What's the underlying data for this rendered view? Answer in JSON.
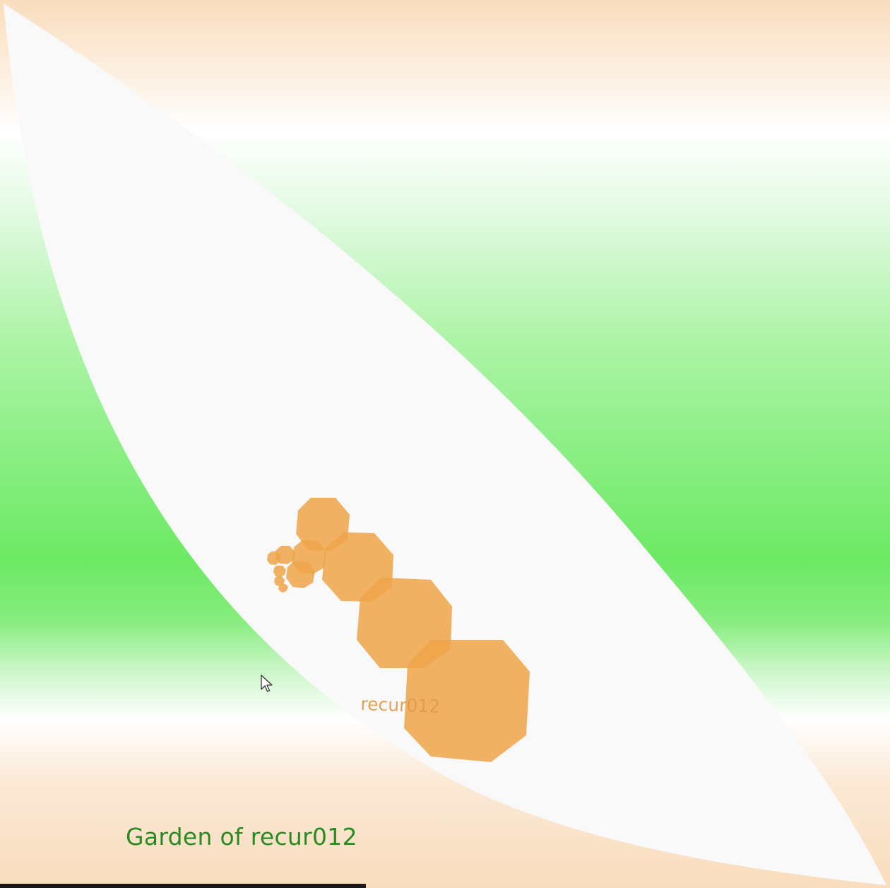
{
  "scene": {
    "blob_label": "recur012",
    "title": "Garden of recur012"
  },
  "colors": {
    "peach": "#f9ddbd",
    "green": "#6de964",
    "leaf_white": "#f9f9fa",
    "octagon_orange": "#f0a548",
    "title_green": "#2a8a22"
  },
  "icons": {
    "pointer": "mouse-pointer-icon"
  }
}
